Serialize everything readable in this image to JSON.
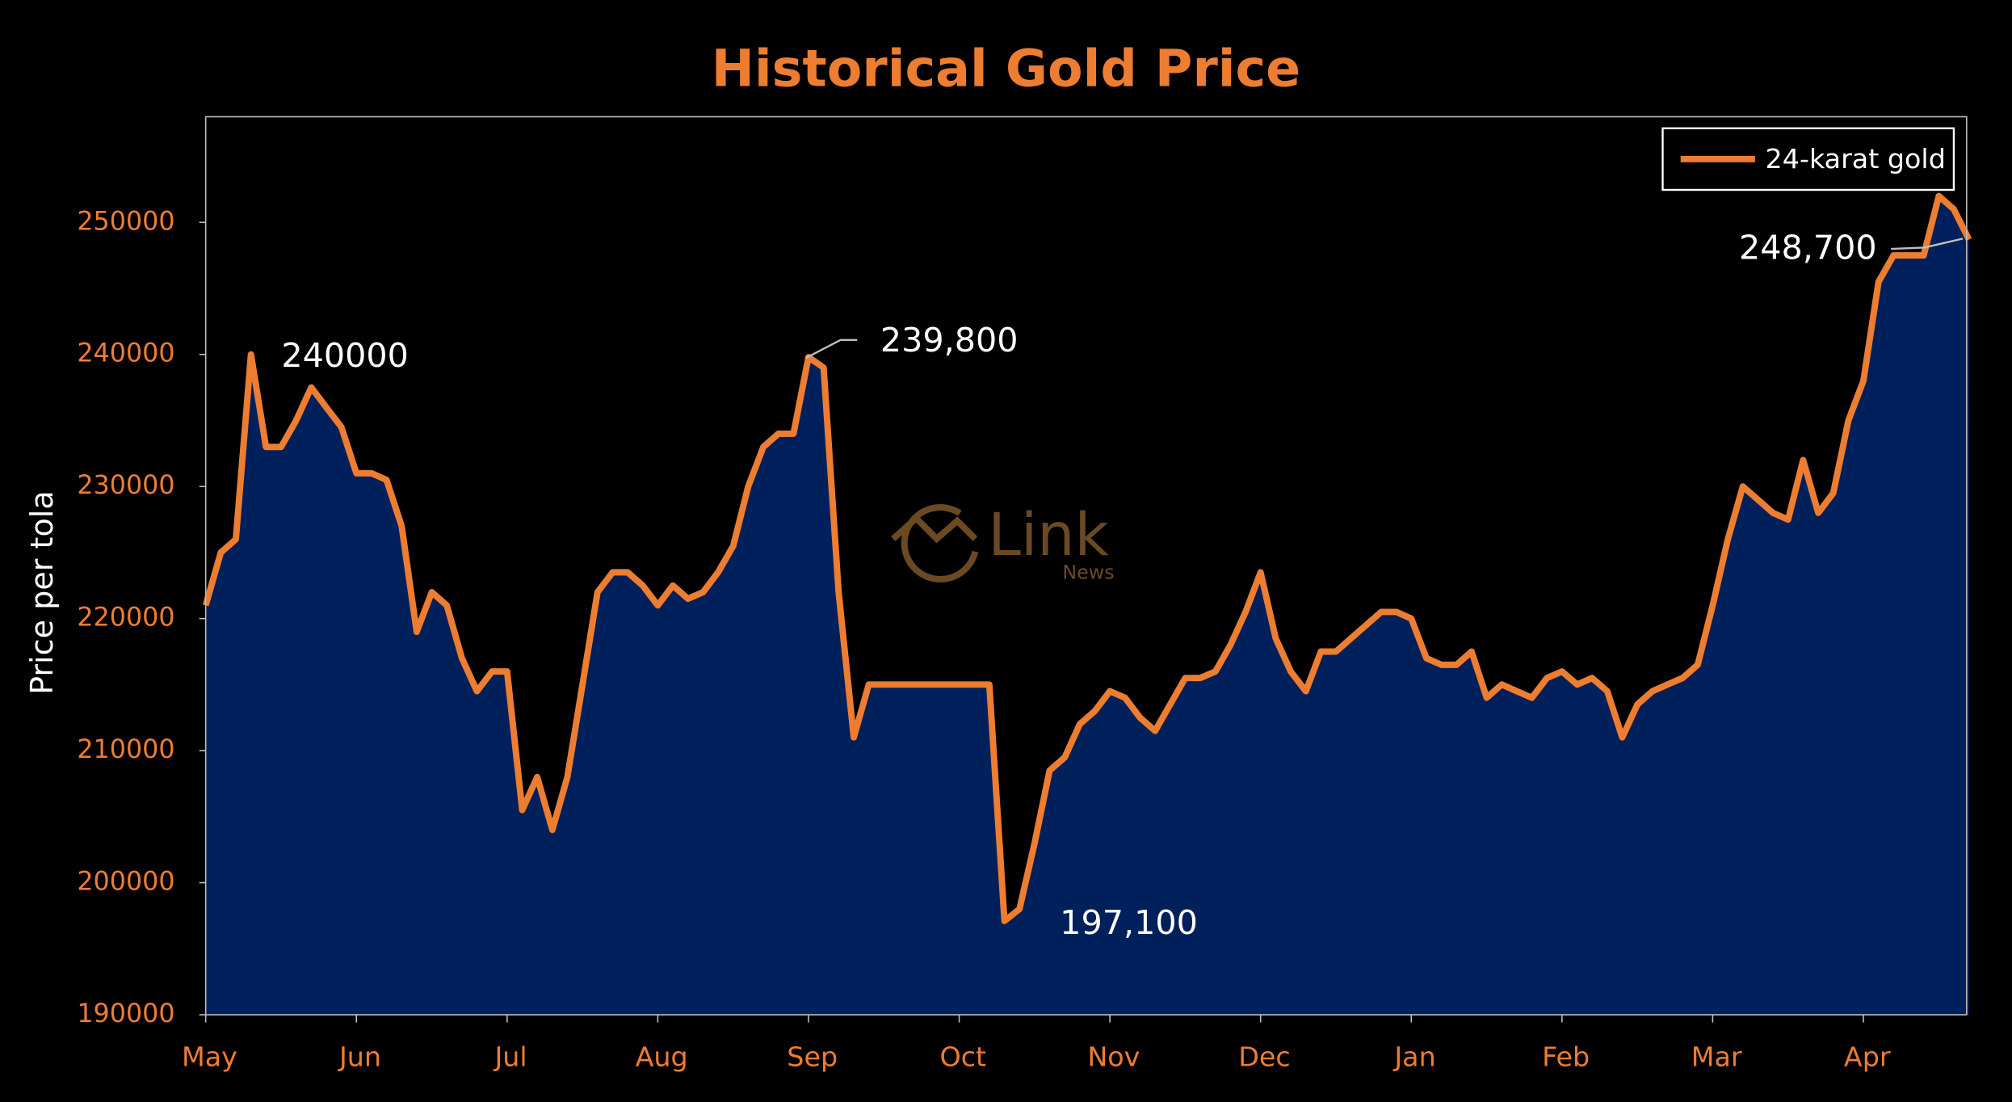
{
  "chart_data": {
    "type": "area",
    "title": "Historical Gold Price",
    "y_label": "Price per tola",
    "watermark": [
      "Link",
      "News"
    ],
    "annotations": [
      "240000",
      "239,800",
      "197,100",
      "248,700"
    ],
    "legend": "top-right",
    "grid": false,
    "ylim": [
      190000,
      258000
    ],
    "yticks": [
      190000,
      200000,
      210000,
      220000,
      230000,
      240000,
      250000
    ],
    "categories": [
      "May",
      null,
      null,
      null,
      null,
      null,
      null,
      null,
      null,
      null,
      "Jun",
      null,
      null,
      null,
      null,
      null,
      null,
      null,
      null,
      null,
      "Jul",
      null,
      null,
      null,
      null,
      null,
      null,
      null,
      null,
      null,
      "Aug",
      null,
      null,
      null,
      null,
      null,
      null,
      null,
      null,
      null,
      "Sep",
      null,
      null,
      null,
      null,
      null,
      null,
      null,
      null,
      null,
      "Oct",
      null,
      null,
      null,
      null,
      null,
      null,
      null,
      null,
      null,
      "Nov",
      null,
      null,
      null,
      null,
      null,
      null,
      null,
      null,
      null,
      "Dec",
      null,
      null,
      null,
      null,
      null,
      null,
      null,
      null,
      null,
      "Jan",
      null,
      null,
      null,
      null,
      null,
      null,
      null,
      null,
      null,
      "Feb",
      null,
      null,
      null,
      null,
      null,
      null,
      null,
      null,
      null,
      "Mar",
      null,
      null,
      null,
      null,
      null,
      null,
      null,
      null,
      null,
      "Apr",
      null,
      null,
      null,
      null,
      null,
      null,
      null
    ],
    "series": [
      {
        "name": "24-karat gold",
        "color": "#ed7d31",
        "fill": "#00205b",
        "values": [
          221000,
          225000,
          226000,
          240000,
          233000,
          233000,
          235000,
          237500,
          236000,
          234500,
          231000,
          231000,
          230500,
          227000,
          219000,
          222000,
          221000,
          217000,
          214500,
          216000,
          216000,
          205500,
          208000,
          204000,
          208000,
          215000,
          222000,
          223500,
          223500,
          222500,
          221000,
          222500,
          221500,
          222000,
          223500,
          225500,
          230000,
          233000,
          234000,
          234000,
          239800,
          239000,
          222000,
          211000,
          215000,
          215000,
          215000,
          215000,
          215000,
          215000,
          215000,
          215000,
          215000,
          197100,
          198000,
          203000,
          208500,
          209500,
          212000,
          213000,
          214500,
          214000,
          212500,
          211500,
          213500,
          215500,
          215500,
          216000,
          218000,
          220500,
          223500,
          218500,
          216000,
          214500,
          217500,
          217500,
          218500,
          219500,
          220500,
          220500,
          220000,
          217000,
          216500,
          216500,
          217500,
          214000,
          215000,
          214500,
          214000,
          215500,
          216000,
          215000,
          215500,
          214500,
          211000,
          213500,
          214500,
          215000,
          215500,
          216500,
          221000,
          226000,
          230000,
          229000,
          228000,
          227500,
          232000,
          228000,
          229500,
          235000,
          238000,
          245500,
          247500,
          247500,
          247500,
          252000,
          251000,
          248700
        ]
      }
    ]
  }
}
